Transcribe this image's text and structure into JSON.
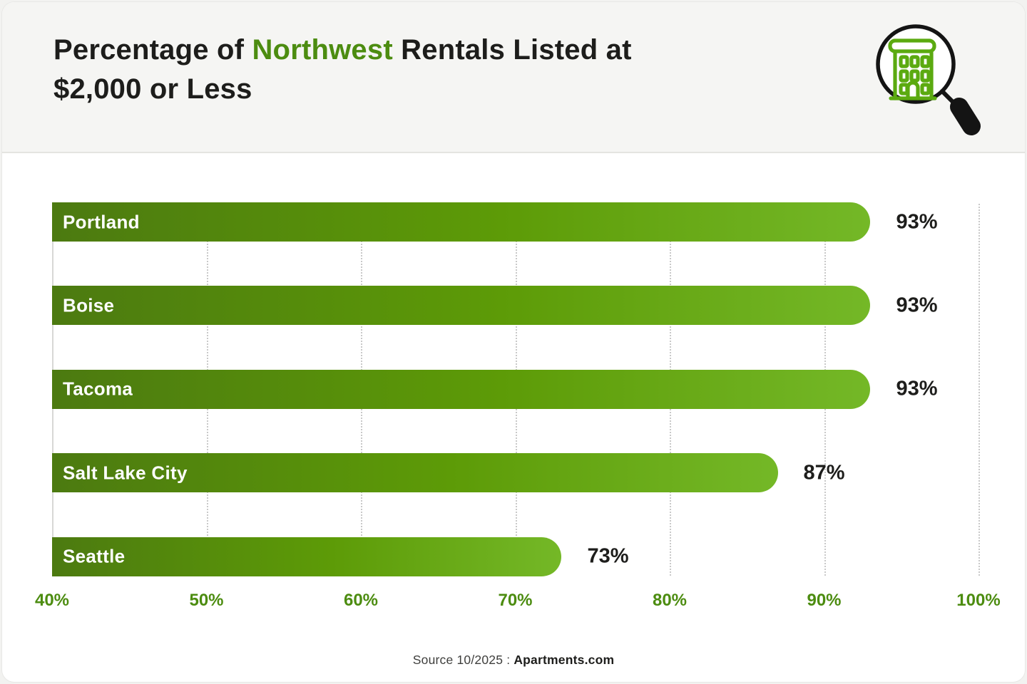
{
  "header": {
    "title": {
      "prefix": "Percentage of",
      "highlight": "Northwest",
      "suffix": "Rentals Listed at",
      "line2": "$2,000 or Less"
    },
    "icon": "magnifier-building-icon"
  },
  "chart_data": {
    "type": "bar",
    "orientation": "horizontal",
    "title": "Percentage of Northwest Rentals Listed at $2,000 or Less",
    "categories": [
      "Portland",
      "Boise",
      "Tacoma",
      "Salt Lake City",
      "Seattle"
    ],
    "values": [
      93,
      93,
      93,
      87,
      73
    ],
    "value_labels": [
      "93%",
      "93%",
      "93%",
      "87%",
      "73%"
    ],
    "xlabel": "",
    "ylabel": "",
    "xlim": [
      40,
      100
    ],
    "x_ticks": [
      40,
      50,
      60,
      70,
      80,
      90,
      100
    ],
    "x_tick_labels": [
      "40%",
      "50%",
      "60%",
      "70%",
      "80%",
      "90%",
      "100%"
    ],
    "grid": "vertical-dotted",
    "legend": "none",
    "colors": {
      "bar_gradient_start": "#4c7a10",
      "bar_gradient_mid": "#5d9b07",
      "bar_gradient_end": "#74b827",
      "tick_label": "#4c8c10",
      "title_highlight": "#4c8c10",
      "value_label": "#1d1d1b",
      "grid_line": "#c9c9c9",
      "header_background": "#f5f5f3",
      "bar_label_text": "#ffffff"
    }
  },
  "footer": {
    "source_prefix": "Source 10/2025 :",
    "source_brand": "Apartments.com"
  }
}
